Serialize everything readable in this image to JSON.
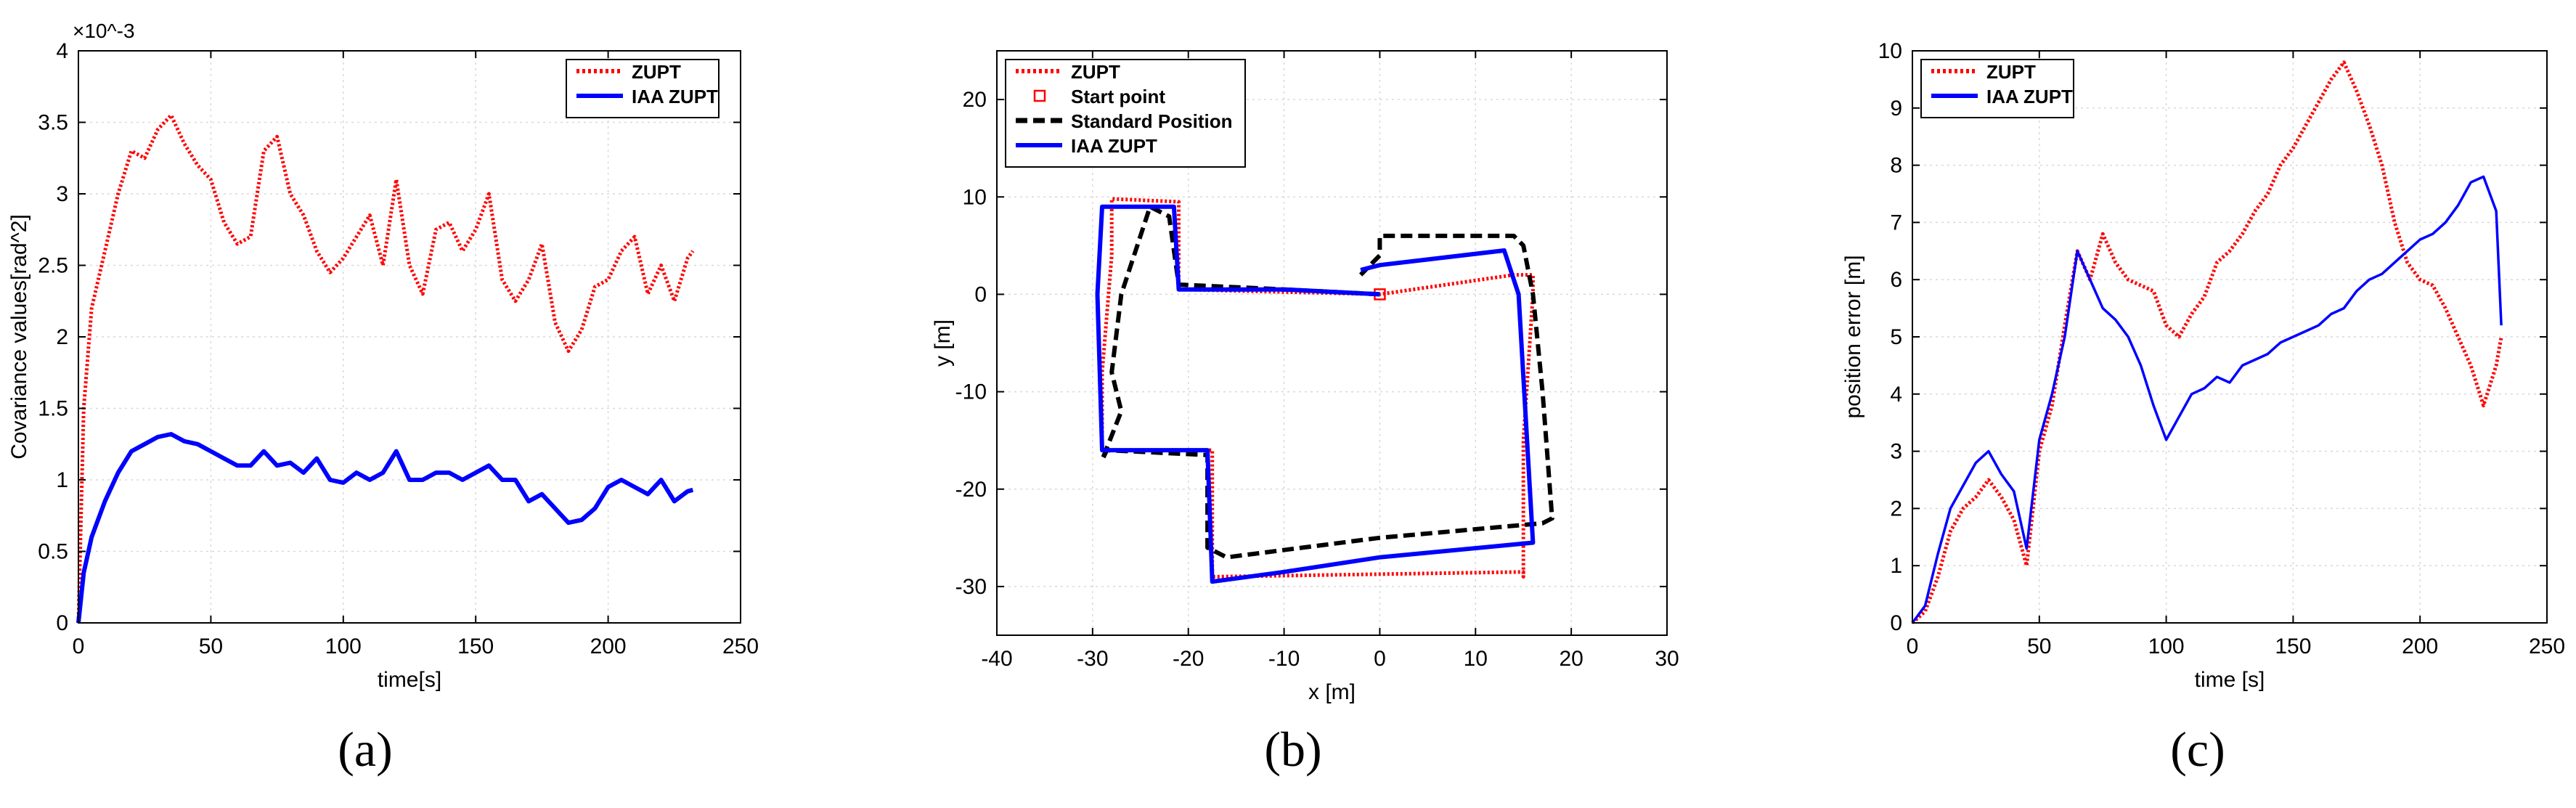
{
  "chart_data": [
    {
      "panel": "(a)",
      "type": "line",
      "title": "",
      "xlabel": "time[s]",
      "ylabel": "Covariance values[rad^2]",
      "y_multiplier_label": "×10^-3",
      "xlim": [
        0,
        250
      ],
      "ylim": [
        0,
        4
      ],
      "xticks": [
        0,
        50,
        100,
        150,
        200,
        250
      ],
      "yticks": [
        0,
        0.5,
        1,
        1.5,
        2,
        2.5,
        3,
        3.5,
        4
      ],
      "grid": true,
      "legend_position": "top-right",
      "series": [
        {
          "name": "ZUPT",
          "color": "#ff0000",
          "style": "dotted",
          "x": [
            0,
            2,
            5,
            10,
            15,
            20,
            25,
            30,
            35,
            40,
            45,
            50,
            55,
            60,
            65,
            70,
            75,
            80,
            85,
            90,
            95,
            100,
            105,
            110,
            115,
            120,
            125,
            130,
            135,
            140,
            145,
            150,
            155,
            160,
            165,
            170,
            175,
            180,
            185,
            190,
            195,
            200,
            205,
            210,
            215,
            220,
            225,
            230,
            232
          ],
          "y": [
            0,
            1.5,
            2.2,
            2.6,
            3.0,
            3.3,
            3.25,
            3.45,
            3.55,
            3.35,
            3.2,
            3.1,
            2.8,
            2.65,
            2.7,
            3.3,
            3.4,
            3.0,
            2.85,
            2.6,
            2.45,
            2.55,
            2.7,
            2.85,
            2.5,
            3.1,
            2.5,
            2.3,
            2.75,
            2.8,
            2.6,
            2.75,
            3.0,
            2.4,
            2.25,
            2.4,
            2.65,
            2.1,
            1.9,
            2.05,
            2.35,
            2.4,
            2.6,
            2.7,
            2.3,
            2.5,
            2.25,
            2.55,
            2.6
          ]
        },
        {
          "name": "IAA ZUPT",
          "color": "#0000ff",
          "style": "solid",
          "x": [
            0,
            2,
            5,
            10,
            15,
            20,
            25,
            30,
            35,
            40,
            45,
            50,
            55,
            60,
            65,
            70,
            75,
            80,
            85,
            90,
            95,
            100,
            105,
            110,
            115,
            120,
            125,
            130,
            135,
            140,
            145,
            150,
            155,
            160,
            165,
            170,
            175,
            180,
            185,
            190,
            195,
            200,
            205,
            210,
            215,
            220,
            225,
            230,
            232
          ],
          "y": [
            0,
            0.35,
            0.6,
            0.85,
            1.05,
            1.2,
            1.25,
            1.3,
            1.32,
            1.27,
            1.25,
            1.2,
            1.15,
            1.1,
            1.1,
            1.2,
            1.1,
            1.12,
            1.05,
            1.15,
            1.0,
            0.98,
            1.05,
            1.0,
            1.05,
            1.2,
            1.0,
            1.0,
            1.05,
            1.05,
            1.0,
            1.05,
            1.1,
            1.0,
            1.0,
            0.85,
            0.9,
            0.8,
            0.7,
            0.72,
            0.8,
            0.95,
            1.0,
            0.95,
            0.9,
            1.0,
            0.85,
            0.92,
            0.93
          ]
        }
      ]
    },
    {
      "panel": "(b)",
      "type": "line",
      "title": "",
      "xlabel": "x [m]",
      "ylabel": "y [m]",
      "xlim": [
        -40,
        30
      ],
      "ylim": [
        -35,
        25
      ],
      "xticks": [
        -40,
        -30,
        -20,
        -10,
        0,
        10,
        20,
        30
      ],
      "yticks": [
        -30,
        -20,
        -10,
        0,
        10,
        20
      ],
      "grid": true,
      "legend_position": "top-left",
      "series": [
        {
          "name": "ZUPT",
          "color": "#ff0000",
          "style": "dotted",
          "x": [
            0,
            -21,
            -21,
            -28,
            -28,
            -29,
            -29,
            -17.5,
            -17.5,
            15,
            15,
            15,
            16,
            16,
            14,
            0
          ],
          "y": [
            0,
            0.5,
            9.5,
            9.8,
            4,
            -8,
            -16,
            -16,
            -29,
            -28.5,
            -29,
            -15,
            0,
            2,
            2,
            0
          ]
        },
        {
          "name": "Start point",
          "color": "#ff0000",
          "style": "marker",
          "x": [
            0
          ],
          "y": [
            0
          ]
        },
        {
          "name": "Standard Position",
          "color": "#000000",
          "style": "dashed",
          "x": [
            0,
            -10,
            -21,
            -22,
            -24,
            -27,
            -28,
            -27,
            -29,
            -28.5,
            -18,
            -18,
            -16,
            0,
            17,
            18,
            17,
            16,
            15,
            14,
            0,
            0,
            -2
          ],
          "y": [
            0,
            0.5,
            1,
            8,
            9,
            0,
            -8,
            -12,
            -17,
            -16,
            -16.5,
            -26,
            -27,
            -25,
            -23.5,
            -23,
            -10,
            0,
            5,
            6,
            6,
            4,
            2
          ]
        },
        {
          "name": "IAA ZUPT",
          "color": "#0000ff",
          "style": "solid",
          "x": [
            0,
            -10,
            -21,
            -21.5,
            -29,
            -29.5,
            -29,
            -18,
            -17.5,
            -10,
            0,
            16,
            14.5,
            13,
            0,
            -2,
            -2
          ],
          "y": [
            0,
            0.5,
            0.5,
            9,
            9,
            0,
            -16,
            -16,
            -29.5,
            -28.5,
            -27,
            -25.5,
            0,
            4.5,
            3,
            2.5,
            2.5
          ]
        }
      ]
    },
    {
      "panel": "(c)",
      "type": "line",
      "title": "",
      "xlabel": "time [s]",
      "ylabel": "position error [m]",
      "xlim": [
        0,
        250
      ],
      "ylim": [
        0,
        10
      ],
      "xticks": [
        0,
        50,
        100,
        150,
        200,
        250
      ],
      "yticks": [
        0,
        1,
        2,
        3,
        4,
        5,
        6,
        7,
        8,
        9,
        10
      ],
      "grid": true,
      "legend_position": "top-left",
      "series": [
        {
          "name": "ZUPT",
          "color": "#ff0000",
          "style": "dotted",
          "x": [
            0,
            5,
            10,
            15,
            20,
            25,
            30,
            35,
            40,
            45,
            50,
            55,
            60,
            65,
            70,
            75,
            80,
            85,
            90,
            95,
            100,
            105,
            110,
            115,
            120,
            125,
            130,
            135,
            140,
            145,
            150,
            155,
            160,
            165,
            170,
            175,
            180,
            185,
            190,
            195,
            200,
            205,
            210,
            215,
            220,
            225,
            230,
            232
          ],
          "y": [
            0,
            0.2,
            0.8,
            1.6,
            2.0,
            2.2,
            2.5,
            2.2,
            1.8,
            1.0,
            3.0,
            3.8,
            5.2,
            6.5,
            6.0,
            6.8,
            6.3,
            6.0,
            5.9,
            5.8,
            5.2,
            5.0,
            5.4,
            5.7,
            6.3,
            6.5,
            6.8,
            7.2,
            7.5,
            8.0,
            8.3,
            8.7,
            9.1,
            9.5,
            9.8,
            9.3,
            8.7,
            8.0,
            7.0,
            6.3,
            6.0,
            5.9,
            5.5,
            5.0,
            4.5,
            3.8,
            4.5,
            5.0
          ]
        },
        {
          "name": "IAA ZUPT",
          "color": "#0000ff",
          "style": "solid",
          "x": [
            0,
            5,
            10,
            15,
            20,
            25,
            30,
            35,
            40,
            45,
            50,
            55,
            60,
            65,
            70,
            75,
            80,
            85,
            90,
            95,
            100,
            105,
            110,
            115,
            120,
            125,
            130,
            135,
            140,
            145,
            150,
            155,
            160,
            165,
            170,
            175,
            180,
            185,
            190,
            195,
            200,
            205,
            210,
            215,
            220,
            225,
            230,
            232
          ],
          "y": [
            0,
            0.3,
            1.2,
            2.0,
            2.4,
            2.8,
            3.0,
            2.6,
            2.3,
            1.3,
            3.2,
            4.0,
            5.0,
            6.5,
            6.0,
            5.5,
            5.3,
            5.0,
            4.5,
            3.8,
            3.2,
            3.6,
            4.0,
            4.1,
            4.3,
            4.2,
            4.5,
            4.6,
            4.7,
            4.9,
            5.0,
            5.1,
            5.2,
            5.4,
            5.5,
            5.8,
            6.0,
            6.1,
            6.3,
            6.5,
            6.7,
            6.8,
            7.0,
            7.3,
            7.7,
            7.8,
            7.2,
            5.2
          ]
        }
      ]
    }
  ],
  "captions": [
    "(a)",
    "(b)",
    "(c)"
  ]
}
